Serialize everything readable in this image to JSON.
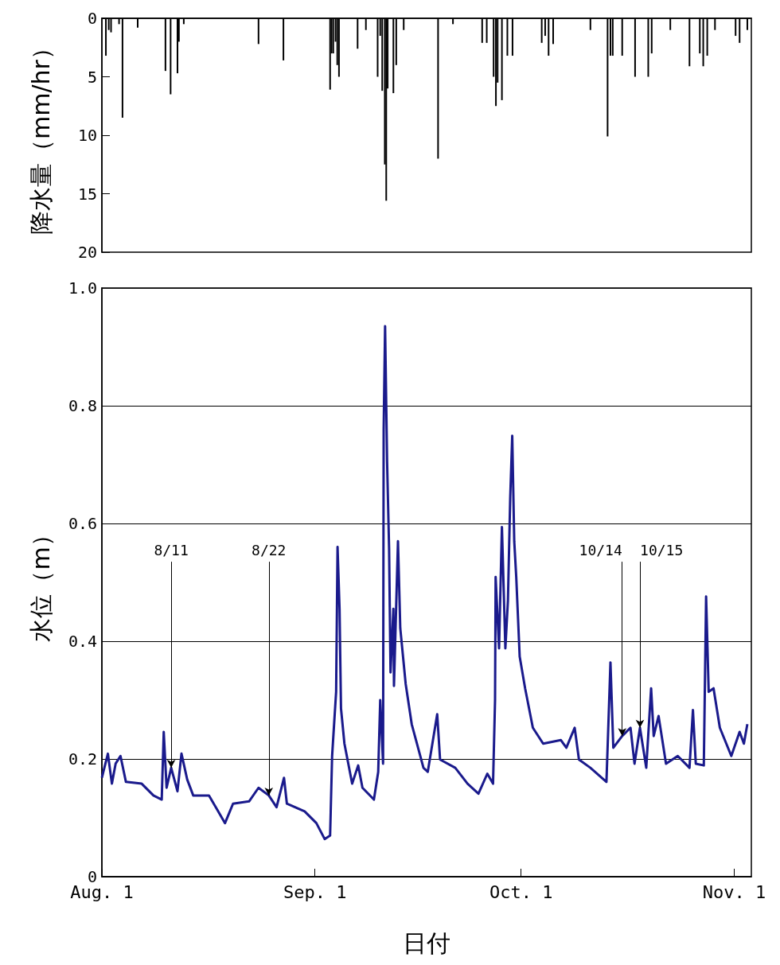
{
  "chart_data": [
    {
      "type": "bar",
      "ylabel": "降水量（mm/hr）",
      "color": "#000000",
      "xlim": [
        "--08-01",
        "--11-03T12:00"
      ],
      "ylim": [
        20,
        0
      ],
      "yticks": [
        0,
        5,
        10,
        15,
        20
      ],
      "tick_labels": "y",
      "x": [
        "--08-01T14:00",
        "--08-02T00:00",
        "--08-02T08:00",
        "--08-03T12:00",
        "--08-04T00:00",
        "--08-06T05:00",
        "--08-10T06:00",
        "--08-11T00:00",
        "--08-12T00:00",
        "--08-12T05:00",
        "--08-12T22:00",
        "--08-23T19:00",
        "--08-27T10:00",
        "--09-03T05:00",
        "--09-03T10:00",
        "--09-03T16:00",
        "--09-04T00:00",
        "--09-04T06:00",
        "--09-04T12:00",
        "--09-07T05:00",
        "--09-08T10:00",
        "--09-10T03:00",
        "--09-10T12:00",
        "--09-10T19:00",
        "--09-11T04:00",
        "--09-11T09:00",
        "--09-11T14:00",
        "--09-12T10:00",
        "--09-12T20:00",
        "--09-13T22:00",
        "--09-18T22:00",
        "--09-21T02:00",
        "--09-25T08:00",
        "--09-26T00:00",
        "--09-27T00:00",
        "--09-27T08:00",
        "--09-27T14:00",
        "--09-28T05:00",
        "--09-29T00:00",
        "--09-29T18:00",
        "--10-04T00:00",
        "--10-04T12:00",
        "--10-05T00:00",
        "--10-05T16:00",
        "--10-11T02:00",
        "--10-13T14:00",
        "--10-14T00:00",
        "--10-14T08:00",
        "--10-15T17:00",
        "--10-17T14:00",
        "--10-19T12:00",
        "--10-20T00:00",
        "--10-22T17:00",
        "--10-25T12:00",
        "--10-27T00:00",
        "--10-27T12:00",
        "--10-28T02:00",
        "--10-29T05:00",
        "--11-01T05:00",
        "--11-01T19:00",
        "--11-02T22:00"
      ],
      "values": [
        3.2,
        1.0,
        1.2,
        0.5,
        8.5,
        0.8,
        4.5,
        6.5,
        4.7,
        2.0,
        0.5,
        2.2,
        3.6,
        6.1,
        3.0,
        3.0,
        2.0,
        4.0,
        5.0,
        2.6,
        1.0,
        5.0,
        1.5,
        6.2,
        12.5,
        15.6,
        6.0,
        6.4,
        4.0,
        1.0,
        12.0,
        0.5,
        2.1,
        2.1,
        5.0,
        7.5,
        5.5,
        7.0,
        3.2,
        3.2,
        2.1,
        1.5,
        3.2,
        2.2,
        1.0,
        10.1,
        3.2,
        3.2,
        3.2,
        5.0,
        5.0,
        3.0,
        1.0,
        4.1,
        3.0,
        4.1,
        3.2,
        1.0,
        1.5,
        2.1,
        1.0
      ]
    },
    {
      "type": "line",
      "ylabel": "水位（m）",
      "xlabel": "日付",
      "color": "#1a1a8c",
      "grid": "y",
      "xlim": [
        "--08-01",
        "--11-03T12:00"
      ],
      "ylim": [
        0,
        1
      ],
      "yticks": [
        0,
        0.2,
        0.4,
        0.6,
        0.8,
        {
          "value": 1,
          "label": "1.0"
        }
      ],
      "xticks": [
        {
          "value": "--08-01",
          "label": "Aug. 1"
        },
        {
          "value": "--09-01",
          "label": "Sep. 1"
        },
        {
          "value": "--10-01",
          "label": "Oct. 1"
        },
        {
          "value": "--11-01",
          "label": "Nov. 1"
        }
      ],
      "annotations": [
        {
          "text": "8/11",
          "x": "--08-11T02:00",
          "y": 0.185
        },
        {
          "text": "8/22",
          "x": "--08-25T07:00",
          "y": 0.138
        },
        {
          "text": "10/14",
          "x": "--10-15T17:00",
          "y": 0.239
        },
        {
          "text": "10/15",
          "x": "--10-18T07:00",
          "y": 0.253
        }
      ],
      "x": [
        "--08-01T00:00",
        "--08-01T21:00",
        "--08-02T11:00",
        "--08-03T00:00",
        "--08-03T17:00",
        "--08-04T12:00",
        "--08-06T19:00",
        "--08-08T12:00",
        "--08-09T17:00",
        "--08-10T00:00",
        "--08-10T10:00",
        "--08-11T02:00",
        "--08-12T00:00",
        "--08-12T14:00",
        "--08-13T10:00",
        "--08-14T07:00",
        "--08-16T14:00",
        "--08-18T22:00",
        "--08-20T02:00",
        "--08-22T10:00",
        "--08-23T19:00",
        "--08-25T07:00",
        "--08-26T10:00",
        "--08-27T12:00",
        "--08-27T22:00",
        "--08-30T12:00",
        "--09-01T05:00",
        "--09-02T10:00",
        "--09-03T05:00",
        "--09-03T12:00",
        "--09-04T02:00",
        "--09-04T07:00",
        "--09-04T14:00",
        "--09-04T19:00",
        "--09-05T07:00",
        "--09-06T10:00",
        "--09-07T07:00",
        "--09-07T22:00",
        "--09-09T14:00",
        "--09-10T05:00",
        "--09-10T12:00",
        "--09-10T22:00",
        "--09-11T00:00",
        "--09-11T05:00",
        "--09-11T12:00",
        "--09-11T19:00",
        "--09-12T00:00",
        "--09-12T10:00",
        "--09-12T12:00",
        "--09-13T02:00",
        "--09-13T10:00",
        "--09-14T05:00",
        "--09-15T02:00",
        "--09-15T17:00",
        "--09-16T19:00",
        "--09-17T10:00",
        "--09-18T19:00",
        "--09-19T05:00",
        "--09-21T10:00",
        "--09-23T05:00",
        "--09-24T19:00",
        "--09-26T02:00",
        "--09-26T22:00",
        "--09-27T05:00",
        "--09-27T07:00",
        "--09-27T19:00",
        "--09-28T05:00",
        "--09-28T17:00",
        "--09-29T02:00",
        "--09-29T10:00",
        "--09-29T17:00",
        "--09-30T00:00",
        "--09-30T07:00",
        "--09-30T19:00",
        "--10-01T14:00",
        "--10-02T17:00",
        "--10-04T05:00",
        "--10-06T19:00",
        "--10-07T14:00",
        "--10-08T19:00",
        "--10-09T10:00",
        "--10-11T02:00",
        "--10-13T10:00",
        "--10-14T00:00",
        "--10-14T10:00",
        "--10-15T17:00",
        "--10-16T22:00",
        "--10-17T12:00",
        "--10-18T07:00",
        "--10-19T05:00",
        "--10-19T22:00",
        "--10-20T07:00",
        "--10-21T00:00",
        "--10-22T02:00",
        "--10-23T19:00",
        "--10-25T12:00",
        "--10-26T00:00",
        "--10-26T10:00",
        "--10-27T14:00",
        "--10-27T22:00",
        "--10-28T07:00",
        "--10-29T00:00",
        "--10-29T22:00",
        "--10-31T14:00",
        "--11-01T19:00",
        "--11-02T10:00",
        "--11-02T22:00"
      ],
      "values": [
        0.168,
        0.209,
        0.158,
        0.192,
        0.205,
        0.161,
        0.158,
        0.138,
        0.131,
        0.246,
        0.151,
        0.185,
        0.145,
        0.209,
        0.165,
        0.138,
        0.138,
        0.091,
        0.124,
        0.128,
        0.151,
        0.138,
        0.118,
        0.168,
        0.124,
        0.111,
        0.091,
        0.064,
        0.07,
        0.205,
        0.314,
        0.56,
        0.455,
        0.286,
        0.226,
        0.158,
        0.189,
        0.151,
        0.131,
        0.178,
        0.3,
        0.192,
        0.759,
        0.935,
        0.705,
        0.557,
        0.347,
        0.455,
        0.324,
        0.57,
        0.422,
        0.327,
        0.259,
        0.232,
        0.185,
        0.178,
        0.276,
        0.199,
        0.185,
        0.158,
        0.141,
        0.175,
        0.158,
        0.3,
        0.509,
        0.388,
        0.594,
        0.388,
        0.469,
        0.645,
        0.749,
        0.57,
        0.509,
        0.374,
        0.32,
        0.253,
        0.226,
        0.232,
        0.219,
        0.253,
        0.199,
        0.185,
        0.161,
        0.364,
        0.219,
        0.239,
        0.253,
        0.192,
        0.253,
        0.185,
        0.32,
        0.239,
        0.273,
        0.192,
        0.205,
        0.185,
        0.283,
        0.192,
        0.189,
        0.476,
        0.314,
        0.32,
        0.253,
        0.205,
        0.246,
        0.226,
        0.259
      ]
    }
  ]
}
